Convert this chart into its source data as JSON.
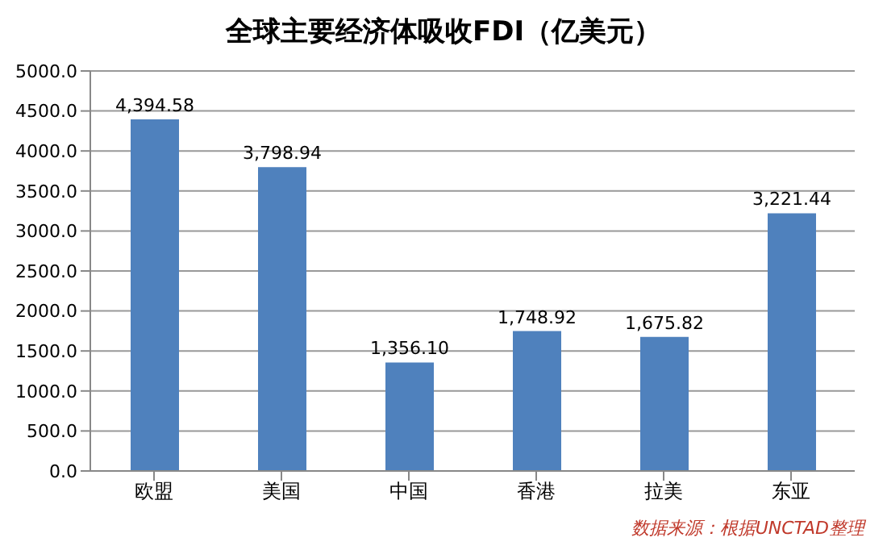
{
  "chart_data": {
    "type": "bar",
    "title": "全球主要经济体吸收FDI（亿美元）",
    "categories": [
      "欧盟",
      "美国",
      "中国",
      "香港",
      "拉美",
      "东亚"
    ],
    "values": [
      4394.58,
      3798.94,
      1356.1,
      1748.92,
      1675.82,
      3221.44
    ],
    "value_labels": [
      "4,394.58",
      "3,798.94",
      "1,356.10",
      "1,748.92",
      "1,675.82",
      "3,221.44"
    ],
    "color": "#4f81bd",
    "ylim": [
      0,
      5000
    ],
    "yticks": [
      {
        "value": 0,
        "label": "0.0"
      },
      {
        "value": 500,
        "label": "500.0"
      },
      {
        "value": 1000,
        "label": "1000.0"
      },
      {
        "value": 1500,
        "label": "1500.0"
      },
      {
        "value": 2000,
        "label": "2000.0"
      },
      {
        "value": 2500,
        "label": "2500.0"
      },
      {
        "value": 3000,
        "label": "3000.0"
      },
      {
        "value": 3500,
        "label": "3500.0"
      },
      {
        "value": 4000,
        "label": "4000.0"
      },
      {
        "value": 4500,
        "label": "4500.0"
      },
      {
        "value": 5000,
        "label": "5000.0"
      }
    ],
    "grid": "y",
    "annotations": [
      "数据来源：根据UNCTAD整理"
    ]
  }
}
